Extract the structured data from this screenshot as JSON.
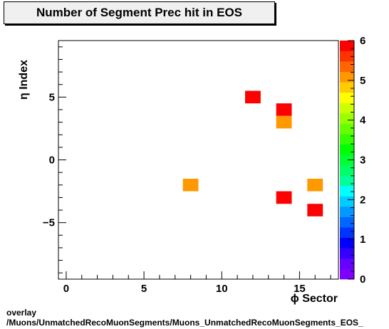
{
  "chart_data": {
    "type": "heatmap",
    "title": "Number of Segment Prec hit in EOS",
    "xlabel": "ϕ Sector",
    "ylabel": "η Index",
    "xlim": [
      -0.5,
      17.5
    ],
    "ylim": [
      -9.5,
      9.5
    ],
    "zlim": [
      0,
      6
    ],
    "x_ticks": [
      0,
      5,
      10,
      15
    ],
    "y_ticks": [
      -5,
      0,
      5
    ],
    "z_ticks": [
      0,
      1,
      2,
      3,
      4,
      5,
      6
    ],
    "x_tick_labels": [
      "0",
      "5",
      "10",
      "15"
    ],
    "y_tick_labels": [
      "−5",
      "0",
      "5"
    ],
    "z_tick_labels": [
      "0",
      "1",
      "2",
      "3",
      "4",
      "5",
      "6"
    ],
    "cells": [
      {
        "x": 12,
        "y": 5,
        "value": 6
      },
      {
        "x": 14,
        "y": 4,
        "value": 6
      },
      {
        "x": 14,
        "y": 3,
        "value": 5
      },
      {
        "x": 8,
        "y": -2,
        "value": 5
      },
      {
        "x": 16,
        "y": -2,
        "value": 5
      },
      {
        "x": 14,
        "y": -3,
        "value": 6
      },
      {
        "x": 16,
        "y": -4,
        "value": 6
      }
    ],
    "palette": [
      "#7f00ff",
      "#6600ff",
      "#3300ff",
      "#0000ff",
      "#0033ff",
      "#0066ff",
      "#0099ff",
      "#00ccff",
      "#00ffff",
      "#00ff99",
      "#00ff66",
      "#00ff33",
      "#00ff00",
      "#33ff00",
      "#66ff00",
      "#99ff00",
      "#ccff00",
      "#ffff00",
      "#ffcc00",
      "#ff9900",
      "#ff6600",
      "#ff3300",
      "#ff0000"
    ],
    "grid": false
  },
  "footer": {
    "line1": "overlay",
    "line2": "/Muons/UnmatchedRecoMuonSegments/Muons_UnmatchedRecoMuonSegments_EOS_"
  }
}
